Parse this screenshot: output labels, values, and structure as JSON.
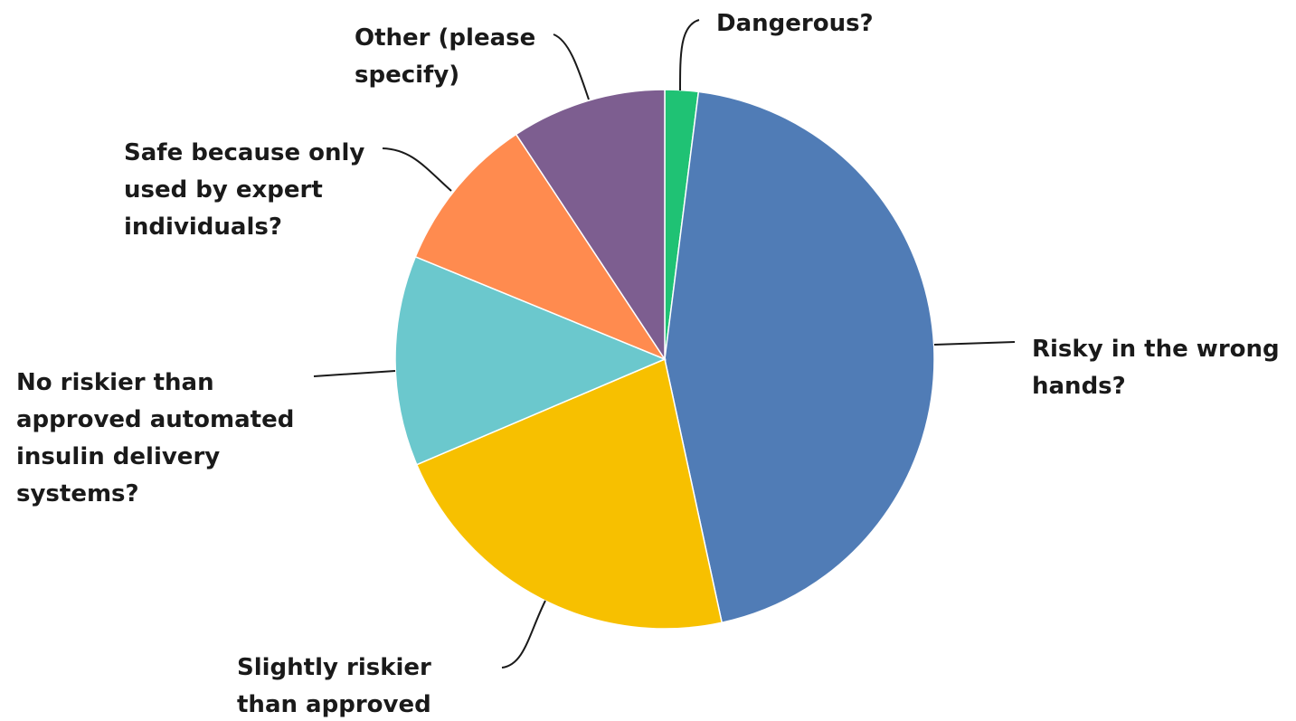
{
  "chart_data": {
    "type": "pie",
    "start_angle_deg": 0,
    "direction": "clockwise",
    "slices": [
      {
        "label_lines": [
          "Dangerous?"
        ],
        "value": 2.0,
        "color": "#1FC274"
      },
      {
        "label_lines": [
          "Risky in the wrong",
          "hands?"
        ],
        "value": 44.6,
        "color": "#507CB6"
      },
      {
        "label_lines": [
          "Slightly riskier",
          "than approved"
        ],
        "value": 22.0,
        "color": "#F7C000"
      },
      {
        "label_lines": [
          "No riskier than",
          "approved automated",
          "insulin delivery",
          "systems?"
        ],
        "value": 12.6,
        "color": "#6BC8CD"
      },
      {
        "label_lines": [
          "Safe because only",
          "used by expert",
          "individuals?"
        ],
        "value": 9.5,
        "color": "#FF8B4F"
      },
      {
        "label_lines": [
          "Other (please",
          "specify)"
        ],
        "value": 9.3,
        "color": "#7D5E90"
      }
    ]
  }
}
